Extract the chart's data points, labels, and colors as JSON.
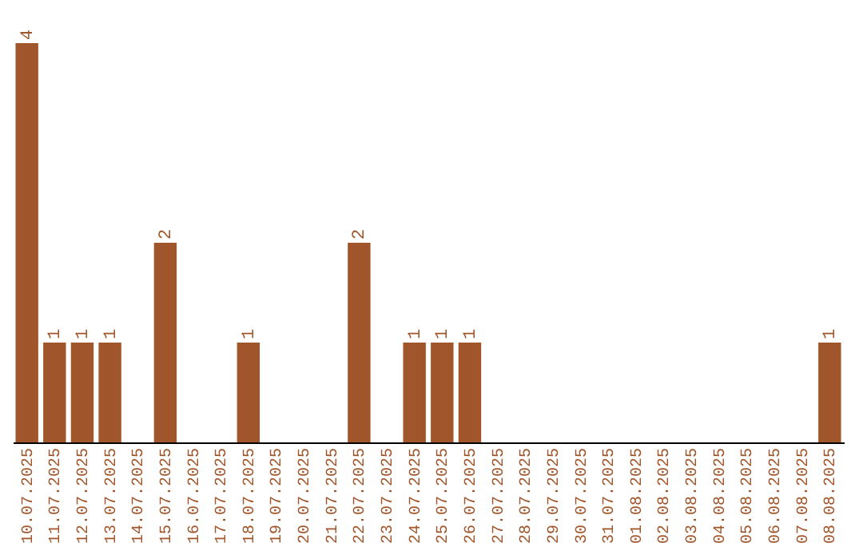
{
  "chart_data": {
    "type": "bar",
    "categories": [
      "10.07.2025",
      "11.07.2025",
      "12.07.2025",
      "13.07.2025",
      "14.07.2025",
      "15.07.2025",
      "16.07.2025",
      "17.07.2025",
      "18.07.2025",
      "19.07.2025",
      "20.07.2025",
      "21.07.2025",
      "22.07.2025",
      "23.07.2025",
      "24.07.2025",
      "25.07.2025",
      "26.07.2025",
      "27.07.2025",
      "28.07.2025",
      "29.07.2025",
      "30.07.2025",
      "31.07.2025",
      "01.08.2025",
      "02.08.2025",
      "03.08.2025",
      "04.08.2025",
      "05.08.2025",
      "06.08.2025",
      "07.08.2025",
      "08.08.2025"
    ],
    "values": [
      4,
      1,
      1,
      1,
      0,
      2,
      0,
      0,
      1,
      0,
      0,
      0,
      2,
      0,
      1,
      1,
      1,
      0,
      0,
      0,
      0,
      0,
      0,
      0,
      0,
      0,
      0,
      0,
      0,
      1
    ],
    "value_labels": [
      "4",
      "1",
      "1",
      "1",
      null,
      "2",
      null,
      null,
      "1",
      null,
      null,
      null,
      "2",
      null,
      "1",
      "1",
      "1",
      null,
      null,
      null,
      null,
      null,
      null,
      null,
      null,
      null,
      null,
      null,
      null,
      "1"
    ],
    "color": "#a0562a",
    "ylim": [
      0,
      4
    ],
    "tick_labels": "x",
    "grid": false
  }
}
